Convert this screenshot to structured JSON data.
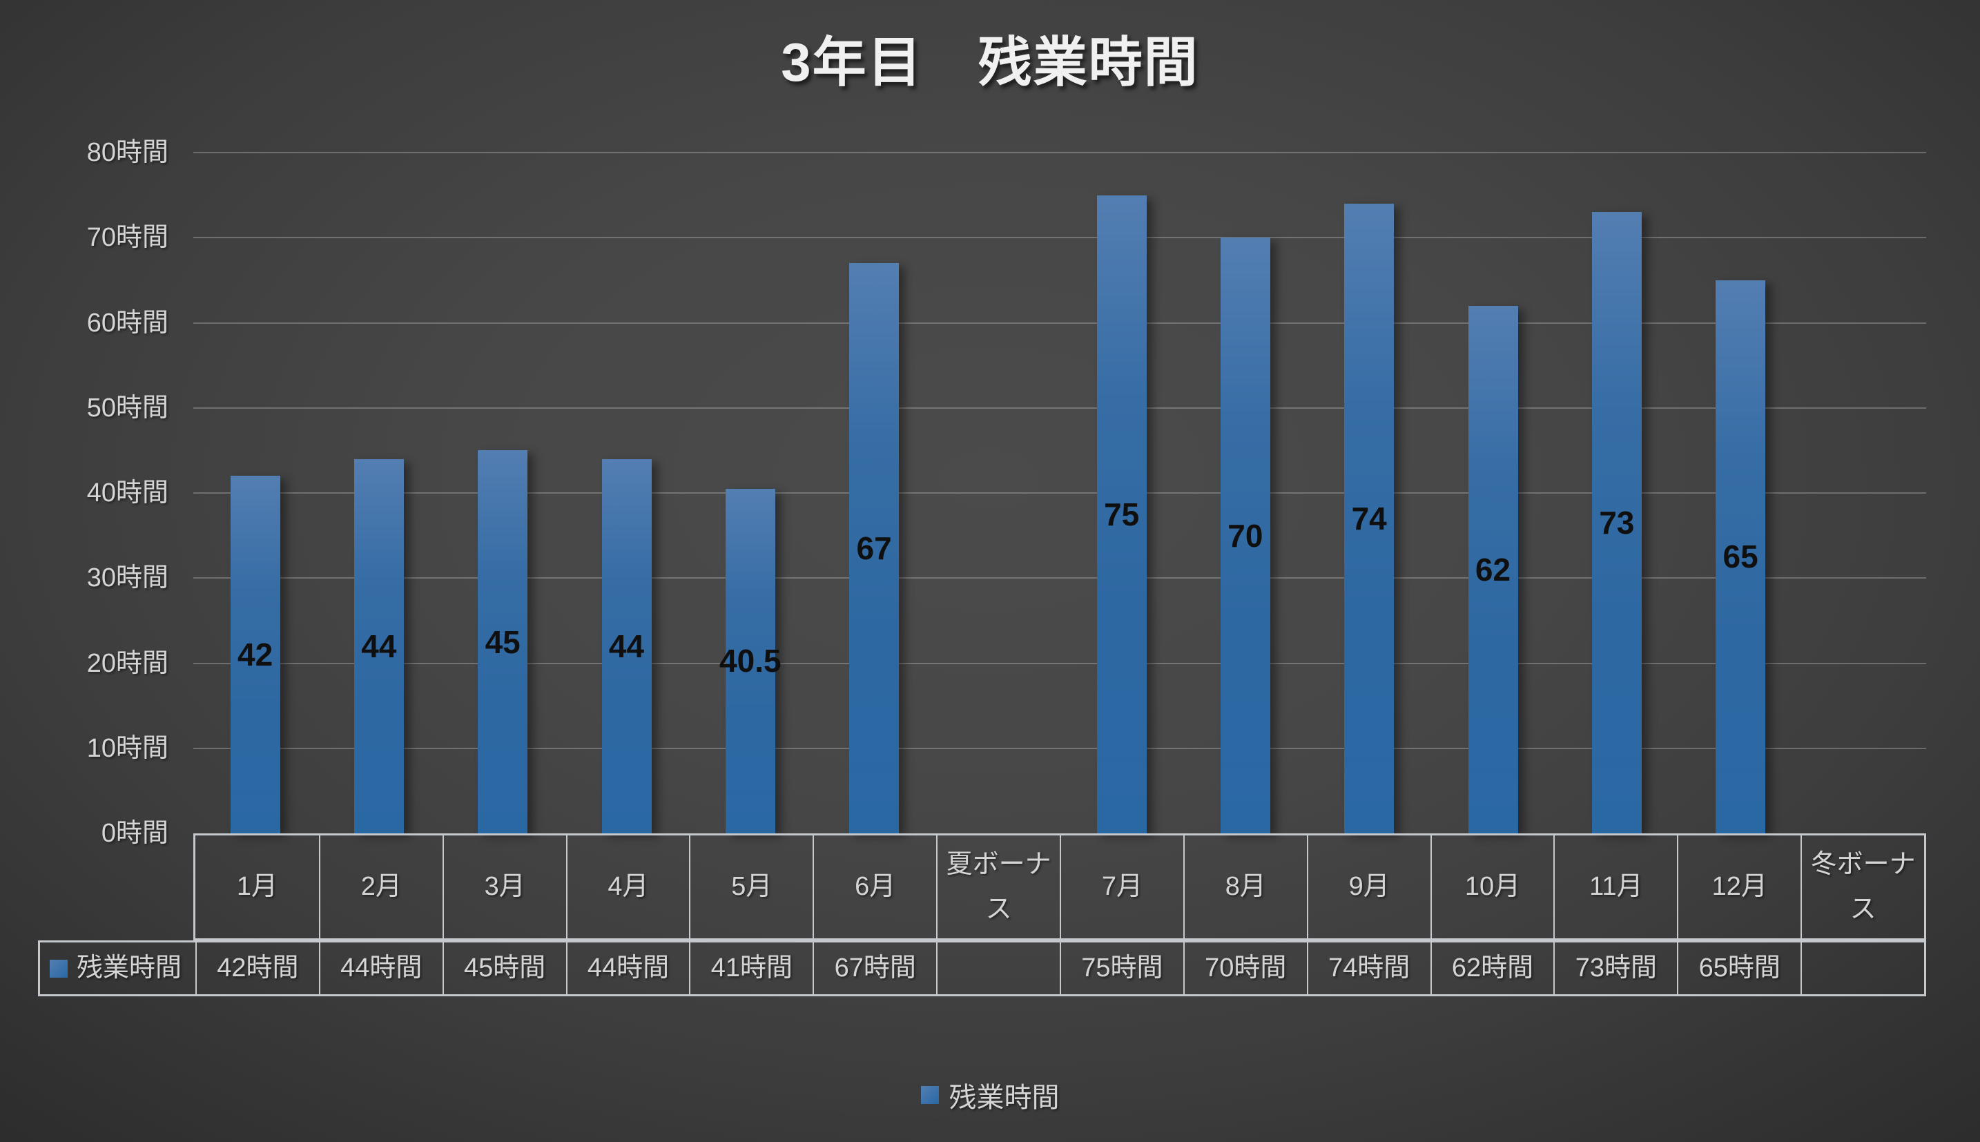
{
  "chart_data": {
    "type": "bar",
    "title": "3年目　残業時間",
    "categories": [
      "1月",
      "2月",
      "3月",
      "4月",
      "5月",
      "6月",
      "夏ボーナス",
      "7月",
      "8月",
      "9月",
      "10月",
      "11月",
      "12月",
      "冬ボーナス"
    ],
    "series": [
      {
        "name": "残業時間",
        "values": [
          42,
          44,
          45,
          44,
          40.5,
          67,
          null,
          75,
          70,
          74,
          62,
          73,
          65,
          null
        ]
      }
    ],
    "data_labels": [
      "42",
      "44",
      "45",
      "44",
      "40.5",
      "67",
      "",
      "75",
      "70",
      "74",
      "62",
      "73",
      "65",
      ""
    ],
    "data_table": {
      "row_header": "残業時間",
      "values": [
        "42時間",
        "44時間",
        "45時間",
        "44時間",
        "41時間",
        "67時間",
        "",
        "75時間",
        "70時間",
        "74時間",
        "62時間",
        "73時間",
        "65時間",
        ""
      ]
    },
    "y_axis": {
      "min": 0,
      "max": 80,
      "step": 10,
      "tick_labels": [
        "0時間",
        "10時間",
        "20時間",
        "30時間",
        "40時間",
        "50時間",
        "60時間",
        "70時間",
        "80時間"
      ]
    },
    "grid": true,
    "legend": {
      "position": "bottom",
      "label": "残業時間"
    },
    "colors": {
      "bar_top": "#537eb2",
      "bar_mid": "#366da5",
      "bar_bottom": "#2a68a4",
      "background_center": "#4b4b4b",
      "background_edge": "#232323",
      "gridline": "#d9d9d9",
      "table_border": "#c5c9cd",
      "text": "#d5d5d5",
      "title": "#f0f0f0",
      "data_label": "#0f0f0f"
    }
  }
}
